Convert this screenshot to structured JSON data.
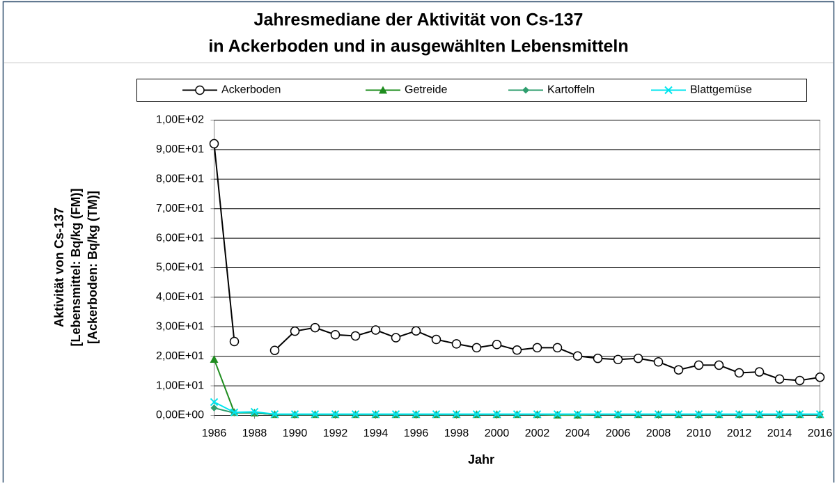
{
  "chart_data": {
    "type": "line",
    "title": [
      "Jahresmediane der Aktivität von Cs-137",
      "in Ackerboden und in ausgewählten Lebensmitteln"
    ],
    "x_label": "Jahr",
    "y_label": [
      "Aktivität von Cs-137",
      "[Lebensmittel: Bq/kg (FM)]",
      "[Ackerboden: Bq/kg (TM)]"
    ],
    "x": [
      1986,
      1987,
      1988,
      1989,
      1990,
      1991,
      1992,
      1993,
      1994,
      1995,
      1996,
      1997,
      1998,
      1999,
      2000,
      2001,
      2002,
      2003,
      2004,
      2005,
      2006,
      2007,
      2008,
      2009,
      2010,
      2011,
      2012,
      2013,
      2014,
      2015,
      2016
    ],
    "series": [
      {
        "name": "Ackerboden",
        "color": "#000000",
        "marker": "circle",
        "values": [
          92,
          25,
          null,
          22,
          28.5,
          29.7,
          27.3,
          26.9,
          28.9,
          26.3,
          28.6,
          25.7,
          24.2,
          22.9,
          24,
          22.1,
          22.9,
          22.9,
          20.1,
          19.3,
          18.9,
          19.3,
          18.1,
          15.4,
          17,
          17,
          14.4,
          14.7,
          12.3,
          11.8,
          12.9
        ]
      },
      {
        "name": "Getreide",
        "color": "#1e8c1e",
        "marker": "triangle",
        "values": [
          19,
          1,
          0.8,
          0.3,
          0.3,
          0.3,
          0.3,
          0.3,
          0.3,
          0.3,
          0.3,
          0.3,
          0.3,
          0.3,
          0.3,
          0.3,
          0.3,
          0.1,
          0.1,
          0.3,
          0.3,
          0.3,
          0.3,
          0.3,
          0.3,
          0.3,
          0.3,
          0.3,
          0.3,
          0.3,
          0.3
        ]
      },
      {
        "name": "Kartoffeln",
        "color": "#2e9e6e",
        "marker": "diamond",
        "values": [
          2.5,
          0.8,
          0.8,
          0.3,
          0.3,
          0.3,
          0.3,
          0.3,
          0.3,
          0.3,
          0.3,
          0.3,
          0.3,
          0.3,
          0.3,
          0.3,
          0.3,
          0.3,
          0.3,
          0.3,
          0.3,
          0.3,
          0.3,
          0.3,
          0.3,
          0.3,
          0.3,
          0.3,
          0.3,
          0.3,
          0.3
        ]
      },
      {
        "name": "Blattgemüse",
        "color": "#00e5ee",
        "marker": "x",
        "values": [
          4.5,
          1,
          1.2,
          0.4,
          0.4,
          0.4,
          0.4,
          0.4,
          0.4,
          0.4,
          0.4,
          0.4,
          0.4,
          0.4,
          0.4,
          0.4,
          0.4,
          0.4,
          0.4,
          0.4,
          0.4,
          0.4,
          0.4,
          0.4,
          0.4,
          0.4,
          0.4,
          0.4,
          0.4,
          0.4,
          0.4
        ]
      }
    ],
    "xlim": [
      1986,
      2016
    ],
    "xticks": [
      1986,
      1988,
      1990,
      1992,
      1994,
      1996,
      1998,
      2000,
      2002,
      2004,
      2006,
      2008,
      2010,
      2012,
      2014,
      2016
    ],
    "ylim": [
      0,
      100
    ],
    "yticks": [
      {
        "value": 0,
        "label": "0,00E+00"
      },
      {
        "value": 10,
        "label": "1,00E+01"
      },
      {
        "value": 20,
        "label": "2,00E+01"
      },
      {
        "value": 30,
        "label": "3,00E+01"
      },
      {
        "value": 40,
        "label": "4,00E+01"
      },
      {
        "value": 50,
        "label": "5,00E+01"
      },
      {
        "value": 60,
        "label": "6,00E+01"
      },
      {
        "value": 70,
        "label": "7,00E+01"
      },
      {
        "value": 80,
        "label": "8,00E+01"
      },
      {
        "value": 90,
        "label": "9,00E+01"
      },
      {
        "value": 100,
        "label": "1,00E+02"
      }
    ],
    "grid": true,
    "legend": "top"
  }
}
